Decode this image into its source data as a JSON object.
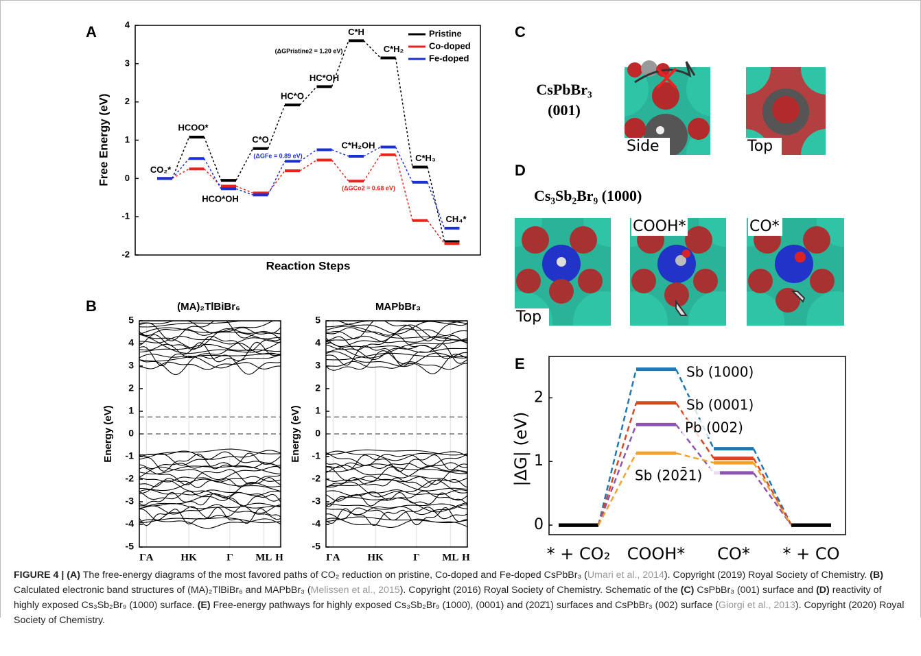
{
  "panel_labels": [
    "A",
    "B",
    "C",
    "D",
    "E"
  ],
  "chart_data": [
    {
      "type": "energy_levels",
      "ylabel": "Free Energy (eV)",
      "xlabel": "Reaction Steps",
      "categories": [
        "CO₂*",
        "HCOO*",
        "HCO*OH",
        "C*O",
        "HC*O",
        "HC*OH",
        "C*H",
        "C*H₂",
        "C*H₃",
        "CH₄*"
      ],
      "ylim": [
        -2,
        4
      ],
      "yticks": [
        -2,
        -1,
        0,
        1,
        2,
        3,
        4
      ],
      "legend": "upper right",
      "series": [
        {
          "name": "Pristine",
          "color": "#000000",
          "values": [
            0,
            1.08,
            -0.05,
            0.78,
            1.92,
            2.4,
            3.6,
            3.15,
            0.3,
            -1.65
          ]
        },
        {
          "name": "Co-doped",
          "color": "#e8231c",
          "values": [
            0,
            0.25,
            -0.2,
            -0.38,
            0.2,
            0.48,
            -0.07,
            0.62,
            -1.1,
            -1.7
          ]
        },
        {
          "name": "Fe-doped",
          "color": "#1a2fd6",
          "values": [
            0,
            0.52,
            -0.27,
            -0.43,
            0.45,
            0.75,
            0.58,
            0.82,
            -0.1,
            -1.3
          ]
        }
      ],
      "annotations": [
        {
          "text": "(ΔGPristine2 = 1.20 eV)",
          "color": "#000000"
        },
        {
          "text": "(ΔGFe = 0.89 eV)",
          "color": "#1a2fd6"
        },
        {
          "text": "(ΔGCo2 = 0.68 eV)",
          "color": "#e8231c"
        },
        {
          "text": "C*H₂OH",
          "color": "#000000"
        }
      ]
    },
    {
      "type": "band_structure",
      "title": "(MA)₂TlBiBr₆",
      "ylabel": "Energy (eV)",
      "categories": [
        "ΓA",
        "HK",
        "Γ",
        "ML",
        "H"
      ],
      "ylim": [
        -5,
        5
      ],
      "yticks": [
        -5,
        -4,
        -3,
        -2,
        -1,
        0,
        1,
        2,
        3,
        4,
        5
      ],
      "reference_lines": [
        0,
        0.75
      ]
    },
    {
      "type": "band_structure",
      "title": "MAPbBr₃",
      "ylabel": "Energy (eV)",
      "categories": [
        "ΓA",
        "HK",
        "Γ",
        "ML",
        "H"
      ],
      "ylim": [
        -5,
        5
      ],
      "yticks": [
        -5,
        -4,
        -3,
        -2,
        -1,
        0,
        1,
        2,
        3,
        4,
        5
      ],
      "reference_lines": [
        0,
        0.75
      ]
    },
    {
      "type": "energy_levels",
      "ylabel": "|ΔG| (eV)",
      "categories": [
        "* + CO₂",
        "COOH*",
        "CO*",
        "* + CO"
      ],
      "ylim": [
        -0.15,
        2.65
      ],
      "yticks": [
        0,
        1,
        2
      ],
      "baseline_color": "#000000",
      "series": [
        {
          "name": "Sb (1000)",
          "color": "#1f77b4",
          "values": [
            0,
            2.45,
            1.2,
            0
          ]
        },
        {
          "name": "Sb (0001)",
          "color": "#d9471f",
          "values": [
            0,
            1.92,
            1.05,
            0
          ]
        },
        {
          "name": "Pb (002)",
          "color": "#8c55b0",
          "values": [
            0,
            1.58,
            0.82,
            0
          ]
        },
        {
          "name": "Sb (202̄1)",
          "color": "#f0a22a",
          "values": [
            0,
            1.13,
            0.98,
            0
          ]
        }
      ]
    }
  ],
  "panel_c": {
    "title_line1": "CsPbBr₃",
    "title_line2": "(001)",
    "views": [
      "Side",
      "Top"
    ]
  },
  "panel_d": {
    "title": "Cs₃Sb₂Br₉ (1000)",
    "views": [
      "Top",
      "COOH*",
      "CO*"
    ]
  },
  "caption": [
    "FIGURE 4 | (A)",
    " The free-energy diagrams of the most favored paths of CO₂ reduction on pristine, Co-doped and Fe-doped CsPbBr₃ (",
    "Umari et al., 2014",
    "). Copyright (2019) Royal Society of Chemistry. ",
    "(B)",
    " Calculated electronic band structures of (MA)₂TlBiBr₆ and MAPbBr₃ (",
    "Melissen et al., 2015",
    "). Copyright (2016) Royal Society of Chemistry. Schematic of the ",
    "(C)",
    " CsPbBr₃ (001) surface and ",
    "(D)",
    " reactivity of highly exposed Cs₃Sb₂Br₉ (1000) surface. ",
    "(E)",
    " Free-energy pathways for highly exposed Cs₃Sb₂Br₉ (1000), (0001) and (202̄1) surfaces and CsPbBr₃ (002) surface (",
    "Giorgi et al., 2013",
    "). Copyright (2020) Royal Society of Chemistry."
  ]
}
